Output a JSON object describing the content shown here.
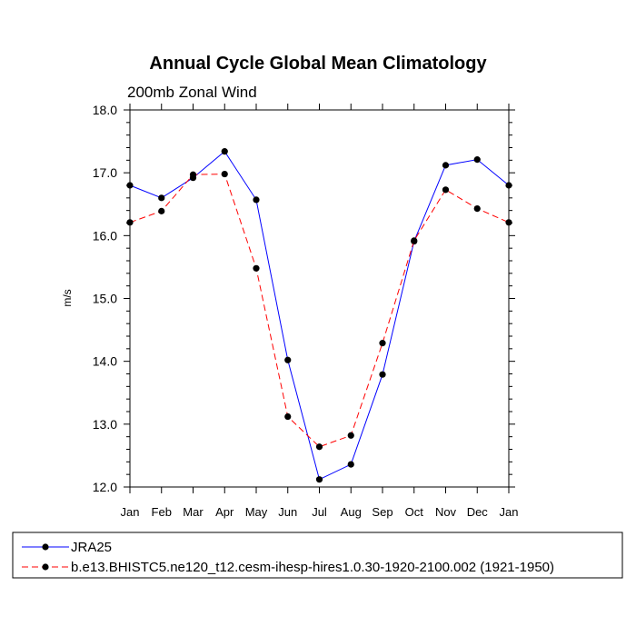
{
  "chart_data": {
    "type": "line",
    "title": "Annual Cycle Global Mean Climatology",
    "subtitle": "200mb Zonal Wind",
    "ylabel": "m/s",
    "xlabel": "",
    "categories": [
      "Jan",
      "Feb",
      "Mar",
      "Apr",
      "May",
      "Jun",
      "Jul",
      "Aug",
      "Sep",
      "Oct",
      "Nov",
      "Dec",
      "Jan"
    ],
    "ylim": [
      12.0,
      18.0
    ],
    "yticks": [
      "12.0",
      "13.0",
      "14.0",
      "15.0",
      "16.0",
      "17.0",
      "18.0"
    ],
    "grid": false,
    "legend_position": "bottom",
    "series": [
      {
        "name": "JRA25",
        "color": "#0000ff",
        "dash": "solid",
        "values": [
          16.8,
          16.6,
          16.92,
          17.34,
          16.57,
          14.02,
          12.12,
          12.36,
          13.79,
          15.91,
          17.12,
          17.21,
          16.8
        ]
      },
      {
        "name": "b.e13.BHISTC5.ne120_t12.cesm-ihesp-hires1.0.30-1920-2100.002 (1921-1950)",
        "color": "#ff0000",
        "dash": "dashed",
        "values": [
          16.21,
          16.39,
          16.97,
          16.98,
          15.48,
          13.12,
          12.64,
          12.82,
          14.29,
          15.92,
          16.73,
          16.43,
          16.21
        ]
      }
    ]
  }
}
